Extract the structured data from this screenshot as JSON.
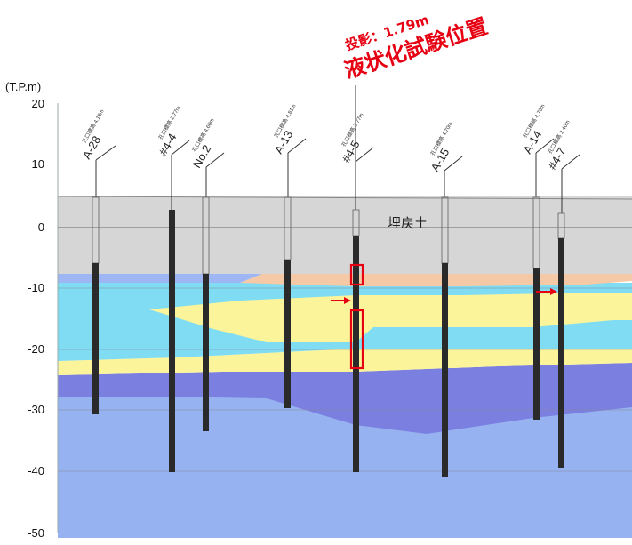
{
  "axis": {
    "unit": "(T.P.m)",
    "ticks": [
      "20",
      "10",
      "0",
      "-10",
      "-20",
      "-30",
      "-40",
      "-50"
    ]
  },
  "annotation": {
    "elevation_text": "投影：1.79m",
    "title": "液状化試験位置"
  },
  "fill_label": "埋戻土",
  "boreholes": [
    {
      "id": "A-28",
      "sub": "孔口標高 4.18m"
    },
    {
      "id": "#4-4",
      "sub": "孔口標高 2.77m"
    },
    {
      "id": "No.2",
      "sub": "孔口標高 4.60m"
    },
    {
      "id": "A-13",
      "sub": "孔口標高 4.81m"
    },
    {
      "id": "#4-5",
      "sub": "孔口標高 2.77m"
    },
    {
      "id": "A-15",
      "sub": "孔口標高 4.70m"
    },
    {
      "id": "A-14",
      "sub": "孔口標高 4.70m"
    },
    {
      "id": "#4-7",
      "sub": "孔口標高 2.40m"
    }
  ],
  "colors": {
    "fill": "#d6d6d6",
    "sand_orange": "#f5c8a6",
    "cyan": "#7fdcf2",
    "yellow": "#fbf49a",
    "purple": "#7b7fe0",
    "light_blue": "#96b2f1",
    "annotation_red": "#e60012"
  }
}
